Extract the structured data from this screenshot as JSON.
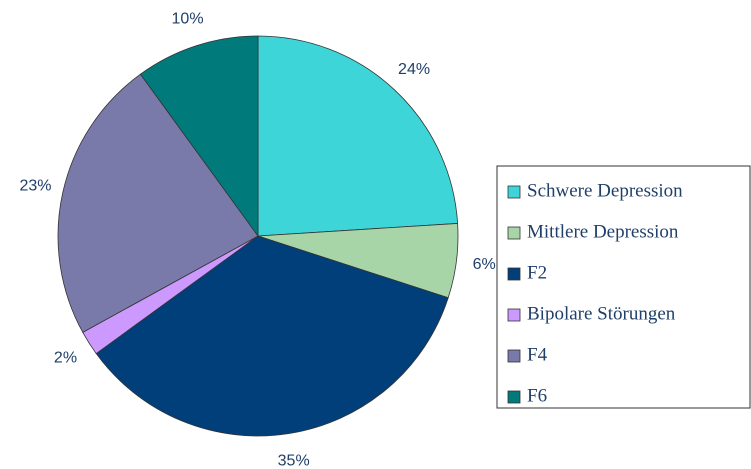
{
  "chart_data": {
    "type": "pie",
    "categories": [
      "Schwere Depression",
      "Mittlere Depression",
      "F2",
      "Bipolare Störungen",
      "F4",
      "F6"
    ],
    "values": [
      24,
      6,
      35,
      2,
      23,
      10
    ],
    "value_labels": [
      "24%",
      "6%",
      "35%",
      "2%",
      "23%",
      "10%"
    ],
    "colors": [
      "#3dd5d8",
      "#a8d5a8",
      "#003f7a",
      "#cc99ff",
      "#7a7aaa",
      "#007a7a"
    ],
    "legend": "right"
  }
}
